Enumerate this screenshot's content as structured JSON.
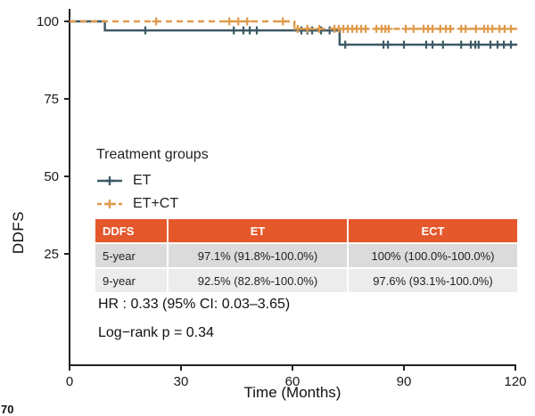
{
  "legend": {
    "title": "Treatment groups",
    "items": [
      {
        "label": "ET",
        "color": "#3d5a66",
        "dashed": false
      },
      {
        "label": "ET+CT",
        "color": "#df9a4b",
        "dashed": true
      }
    ]
  },
  "table": {
    "header": [
      "DDFS",
      "ET",
      "ECT"
    ],
    "header_bg": "#e4582b",
    "row_bgs": [
      "#dbdbdb",
      "#ececec"
    ],
    "rows": [
      [
        "5-year",
        "97.1% (91.8%-100.0%)",
        "100% (100.0%-100.0%)"
      ],
      [
        "9-year",
        "92.5% (82.8%-100.0%)",
        "97.6% (93.1%-100.0%)"
      ]
    ]
  },
  "annotations": {
    "hazard_ratio": "HR : 0.33 (95% CI: 0.03–3.65)",
    "logrank": "Log−rank  p = 0.34"
  },
  "corner_fragment": "70",
  "chart_data": {
    "type": "line",
    "subtype": "kaplan-meier-step",
    "title": "",
    "xlabel": "Time (Months)",
    "ylabel": "DDFS",
    "xlim": [
      0,
      121
    ],
    "ylim": [
      0,
      105
    ],
    "x_ticks": [
      0,
      30,
      60,
      90,
      120
    ],
    "y_ticks": [
      100,
      75,
      50,
      25
    ],
    "grid": false,
    "legend_position": "inside-left",
    "axis_color": "#222222",
    "tick_label_color": "#1a1a1a",
    "series": [
      {
        "name": "ET",
        "color": "#3d5a66",
        "style": "solid",
        "steps": [
          [
            0,
            100
          ],
          [
            9.5,
            100
          ],
          [
            9.5,
            97.1
          ],
          [
            72.7,
            97.1
          ],
          [
            72.7,
            92.5
          ],
          [
            120.5,
            92.5
          ]
        ],
        "censor_times": [
          20.4,
          44.2,
          46.8,
          48.5,
          50.4,
          62.4,
          64,
          65.3,
          67.7,
          70,
          74.2,
          84.5,
          85.7,
          90,
          96,
          97.7,
          100.5,
          105.4,
          108,
          109.2,
          110.1,
          113.3,
          115.2,
          116.9,
          118.8
        ]
      },
      {
        "name": "ET+CT",
        "color": "#df9a4b",
        "style": "dashed",
        "steps": [
          [
            0,
            100
          ],
          [
            60.5,
            100
          ],
          [
            60.5,
            97.6
          ],
          [
            120.5,
            97.6
          ]
        ],
        "censor_times": [
          23.3,
          43,
          45.4,
          47.8,
          57.4,
          61.4,
          64,
          67.2,
          71.3,
          72.5,
          73.7,
          74.9,
          76.1,
          77.3,
          78.5,
          79.7,
          82.6,
          84,
          85,
          85.9,
          90.5,
          92.6,
          95.3,
          96.5,
          97.7,
          99.8,
          101.3,
          102.5,
          105.4,
          106.6,
          109.4,
          111.6,
          112.6,
          113.8,
          115.7,
          117.1,
          118.8
        ]
      }
    ],
    "milestone_estimates": {
      "5_year": {
        "ET": "97.1% (91.8%-100.0%)",
        "ECT": "100% (100.0%-100.0%)"
      },
      "9_year": {
        "ET": "92.5% (82.8%-100.0%)",
        "ECT": "97.6% (93.1%-100.0%)"
      }
    }
  }
}
